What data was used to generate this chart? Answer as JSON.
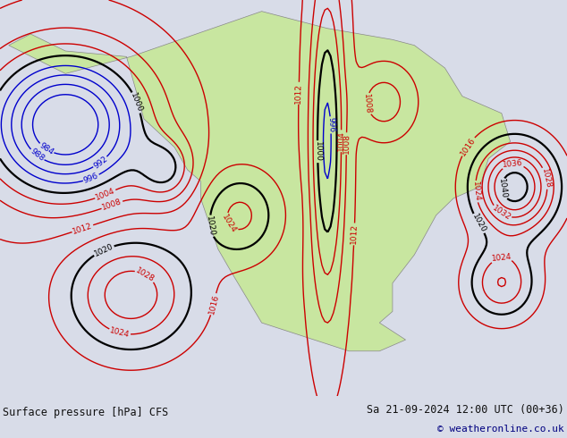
{
  "title_left": "Surface pressure [hPa] CFS",
  "title_right": "Sa 21-09-2024 12:00 UTC (00+36)",
  "copyright": "© weatheronline.co.uk",
  "bg_color": "#d8dce8",
  "land_color": "#c8e6a0",
  "ocean_color": "#d8dce8",
  "fig_width": 6.34,
  "fig_height": 4.9,
  "dpi": 100,
  "footer_bg": "#e8e8e8",
  "footer_text_color": "#111111",
  "copyright_color": "#000080",
  "isobar_interval": 4,
  "label_fontsize": 6.5,
  "footer_fontsize": 8.5,
  "p_min": 984,
  "p_max": 1052
}
